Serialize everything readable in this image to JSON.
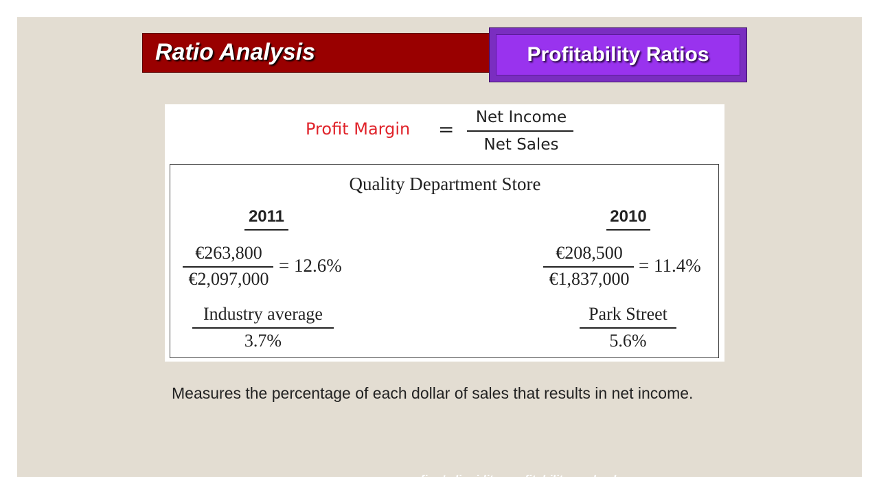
{
  "header": {
    "title": "Ratio Analysis",
    "section": "Profitability Ratios"
  },
  "formula": {
    "label": "Profit Margin",
    "equals": "=",
    "numerator": "Net Income",
    "denominator": "Net Sales"
  },
  "example": {
    "company": "Quality Department Store",
    "years": [
      {
        "year": "2011",
        "numerator": "€263,800",
        "denominator": "€2,097,000",
        "result": "= 12.6%"
      },
      {
        "year": "2010",
        "numerator": "€208,500",
        "denominator": "€1,837,000",
        "result": "= 11.4%"
      }
    ],
    "comparisons": [
      {
        "label": "Industry average",
        "value": "3.7%"
      },
      {
        "label": "Park Street",
        "value": "5.6%"
      }
    ]
  },
  "description": "Measures the percentage of each dollar of sales that results in net income.",
  "footer_text": "firm's liquidity, profitability, and solvency.",
  "colors": {
    "slide_background": "#e3ddd2",
    "title_bar": "#990000",
    "section_box": "#9933ee",
    "formula_label": "#e0242b"
  }
}
